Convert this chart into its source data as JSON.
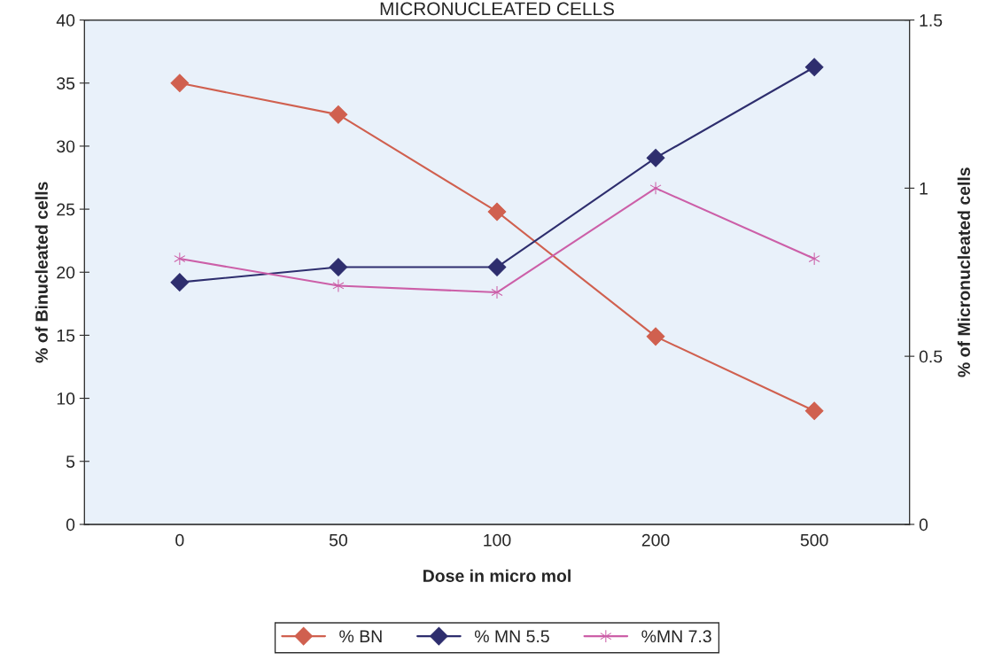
{
  "chart_data": {
    "type": "line",
    "title": "MICRONUCLEATED CELLS",
    "xlabel": "Dose in micro mol",
    "ylabel": "% of Binucleated cells",
    "y2label": "% of Micronucleated cells",
    "categories": [
      "0",
      "50",
      "100",
      "200",
      "500"
    ],
    "series": [
      {
        "name": "% BN",
        "color": "#d0604f",
        "marker": "diamond",
        "values": [
          35,
          32.5,
          24.8,
          14.9,
          9.0
        ]
      },
      {
        "name": "% MN 5.5",
        "color": "#2e2e6e",
        "marker": "diamond",
        "axis": "y2",
        "values": [
          0.72,
          0.765,
          0.765,
          1.09,
          1.36
        ]
      },
      {
        "name": "%MN 7.3",
        "color": "#cc5fa8",
        "marker": "cross",
        "axis": "y2",
        "values": [
          0.79,
          0.71,
          0.69,
          1.0,
          0.79
        ]
      }
    ],
    "ylim": [
      0,
      40
    ],
    "yticks": [
      0,
      5,
      10,
      15,
      20,
      25,
      30,
      35,
      40
    ],
    "y2lim": [
      0,
      1.5
    ],
    "y2ticks": [
      0,
      0.5,
      1,
      1.5
    ],
    "grid": false,
    "legend": "bottom"
  }
}
